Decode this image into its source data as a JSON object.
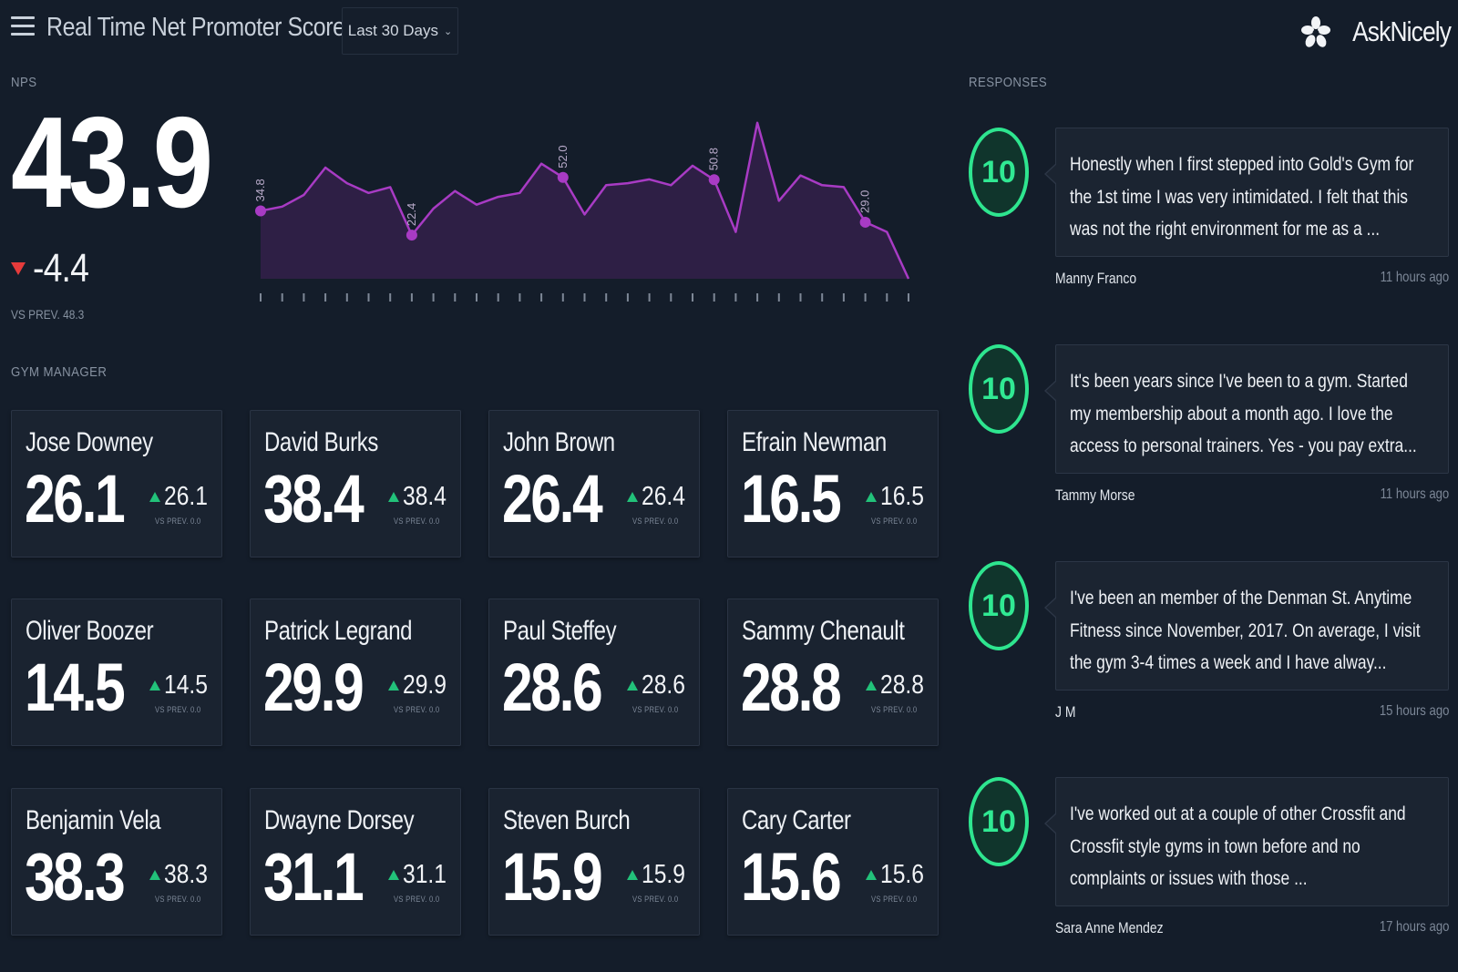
{
  "header": {
    "title": "Real Time Net Promoter Score",
    "range": "Last 30 Days",
    "brand": "AskNicely"
  },
  "nps": {
    "label": "NPS",
    "value": "43.9",
    "delta": "-4.4",
    "prev_label": "VS PREV. 48.3"
  },
  "chart_data": {
    "type": "area",
    "title": "",
    "xlabel": "",
    "ylabel": "",
    "ylim": [
      0,
      100
    ],
    "color": "#a83bc4",
    "x": [
      1,
      2,
      3,
      4,
      5,
      6,
      7,
      8,
      9,
      10,
      11,
      12,
      13,
      14,
      15,
      16,
      17,
      18,
      19,
      20,
      21,
      22,
      23,
      24,
      25,
      26,
      27,
      28,
      29,
      30,
      31
    ],
    "values": [
      34.8,
      37,
      43,
      57,
      49,
      44,
      47,
      22.4,
      36,
      45,
      38,
      42,
      44,
      59,
      52.0,
      33,
      48,
      49,
      51,
      48,
      58,
      50.8,
      24,
      80,
      40,
      53,
      48,
      47,
      29.0,
      24,
      0
    ],
    "annotations": [
      {
        "index": 0,
        "label": "34.8"
      },
      {
        "index": 7,
        "label": "22.4"
      },
      {
        "index": 14,
        "label": "52.0"
      },
      {
        "index": 21,
        "label": "50.8"
      },
      {
        "index": 28,
        "label": "29.0"
      }
    ]
  },
  "managers_label": "GYM MANAGER",
  "managers": [
    {
      "name": "Jose Downey",
      "score": "26.1",
      "delta": "26.1",
      "prev": "VS PREV. 0.0"
    },
    {
      "name": "David Burks",
      "score": "38.4",
      "delta": "38.4",
      "prev": "VS PREV. 0.0"
    },
    {
      "name": "John Brown",
      "score": "26.4",
      "delta": "26.4",
      "prev": "VS PREV. 0.0"
    },
    {
      "name": "Efrain Newman",
      "score": "16.5",
      "delta": "16.5",
      "prev": "VS PREV. 0.0"
    },
    {
      "name": "Oliver Boozer",
      "score": "14.5",
      "delta": "14.5",
      "prev": "VS PREV. 0.0"
    },
    {
      "name": "Patrick Legrand",
      "score": "29.9",
      "delta": "29.9",
      "prev": "VS PREV. 0.0"
    },
    {
      "name": "Paul Steffey",
      "score": "28.6",
      "delta": "28.6",
      "prev": "VS PREV. 0.0"
    },
    {
      "name": "Sammy Chenault",
      "score": "28.8",
      "delta": "28.8",
      "prev": "VS PREV. 0.0"
    },
    {
      "name": "Benjamin Vela",
      "score": "38.3",
      "delta": "38.3",
      "prev": "VS PREV. 0.0"
    },
    {
      "name": "Dwayne Dorsey",
      "score": "31.1",
      "delta": "31.1",
      "prev": "VS PREV. 0.0"
    },
    {
      "name": "Steven Burch",
      "score": "15.9",
      "delta": "15.9",
      "prev": "VS PREV. 0.0"
    },
    {
      "name": "Cary Carter",
      "score": "15.6",
      "delta": "15.6",
      "prev": "VS PREV. 0.0"
    }
  ],
  "responses_label": "RESPONSES",
  "responses": [
    {
      "score": "10",
      "text": "Honestly when I first stepped into Gold's Gym for the 1st time I was very intimidated. I felt that this was not the right environment for me as a ...",
      "name": "Manny Franco",
      "time": "11 hours ago"
    },
    {
      "score": "10",
      "text": "It's been years since I've been to a gym. Started my membership about a month ago. I love the access to personal trainers. Yes - you pay extra...",
      "name": "Tammy Morse",
      "time": "11 hours ago"
    },
    {
      "score": "10",
      "text": "I've been an member of the Denman St. Anytime Fitness since November, 2017. On average, I visit the gym 3-4 times a week and I have alway...",
      "name": "J M",
      "time": "15 hours ago"
    },
    {
      "score": "10",
      "text": "I've worked out at a couple of other Crossfit and Crossfit style gyms in town before and no complaints or issues with those ...",
      "name": "Sara Anne Mendez",
      "time": "17 hours ago"
    }
  ]
}
